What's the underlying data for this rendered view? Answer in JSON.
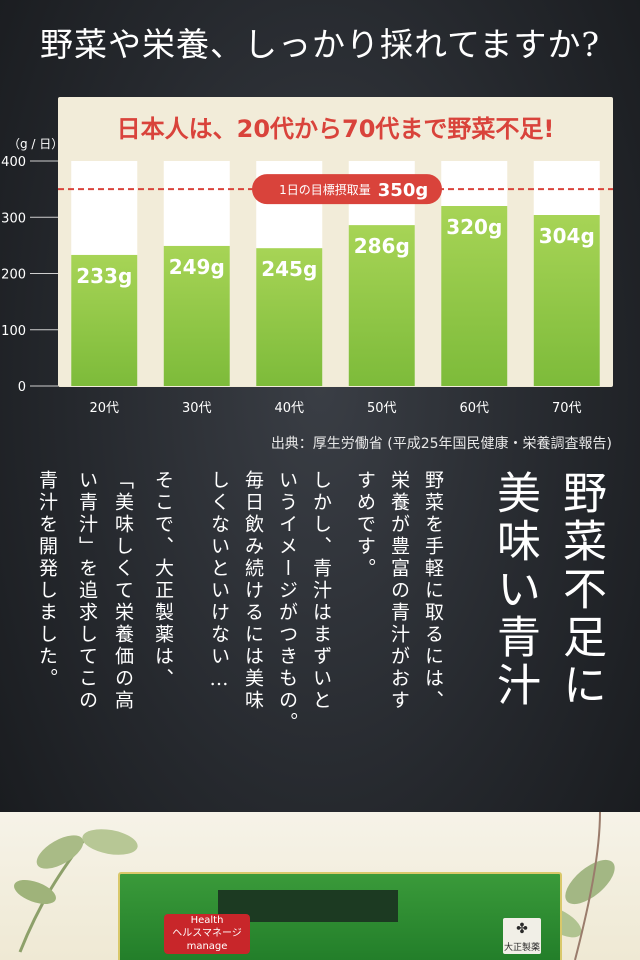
{
  "headline": "野菜や栄養、しっかり採れてますか?",
  "chart_data": {
    "type": "bar",
    "title": "日本人は、20代から70代まで野菜不足!",
    "unit_label": "（g / 日）",
    "categories": [
      "20代",
      "30代",
      "40代",
      "50代",
      "60代",
      "70代"
    ],
    "values": [
      233,
      249,
      245,
      286,
      320,
      304
    ],
    "value_labels": [
      "233g",
      "249g",
      "245g",
      "286g",
      "320g",
      "304g"
    ],
    "ylim": [
      0,
      400
    ],
    "yticks": [
      0,
      100,
      200,
      300,
      400
    ],
    "target": {
      "value": 350,
      "label": "1日の目標摂取量",
      "value_label": "350g"
    },
    "colors": {
      "bar": "#7dbb3a",
      "bar_top": "#a7d456",
      "target_line": "#d9433b",
      "title": "#d9433b",
      "panel": "#f2ecd9"
    }
  },
  "source_note": "出典：厚生労働省 (平成25年国民健康・栄養調査報告)",
  "vertical_headline": [
    "野菜不足に",
    "美味い青汁"
  ],
  "vertical_body": [
    "野菜を手軽に取るには、",
    "栄養が豊富の青汁がおす",
    "すめです。",
    "しかし、青汁はまずいと",
    "いうイメージがつきもの。",
    "毎日飲み続けるには美味",
    "しくないといけない…",
    "そこで、大正製薬は、",
    "「美味しくて栄養価の高",
    "い青汁」を追求してこの",
    "青汁を開発しました。"
  ],
  "product": {
    "badge_lines": [
      "Health",
      "ヘルスマネージ",
      "manage"
    ],
    "maker": "大正製薬"
  }
}
